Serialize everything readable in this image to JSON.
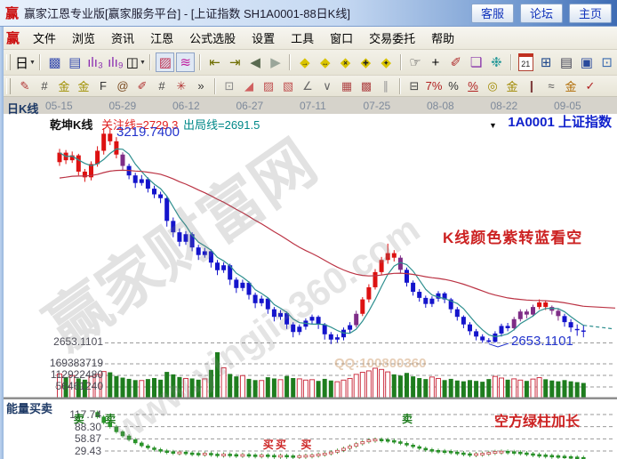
{
  "window": {
    "logo": "赢",
    "title": "赢家江恩专业版[赢家服务平台] - [上证指数  SH1A0001-88日K线]",
    "buttons": [
      {
        "name": "service-button",
        "label": "客服"
      },
      {
        "name": "forum-button",
        "label": "论坛"
      },
      {
        "name": "home-button",
        "label": "主页"
      }
    ]
  },
  "menu": {
    "logo": "赢",
    "items": [
      "文件",
      "浏览",
      "资讯",
      "江恩",
      "公式选股",
      "设置",
      "工具",
      "窗口",
      "交易委托",
      "帮助"
    ]
  },
  "toolbar_main": [
    {
      "n": "period-day-button",
      "g": "日",
      "c": "#000000",
      "dd": true
    },
    {
      "sep": true
    },
    {
      "n": "chart-window-icon",
      "g": "▩",
      "c": "#3a4fb0"
    },
    {
      "n": "info-panel-icon",
      "g": "▤",
      "c": "#3a4fb0"
    },
    {
      "n": "bars-3-icon",
      "g": "ılı₃",
      "c": "#8a2bb0"
    },
    {
      "n": "bars-9-icon",
      "g": "ılı₉",
      "c": "#8a2bb0"
    },
    {
      "n": "candle-style-button",
      "g": "◫",
      "c": "#000000",
      "dd": true
    },
    {
      "sep": true
    },
    {
      "n": "qiankun-kline-icon",
      "g": "▨",
      "c": "#c03050",
      "p": true
    },
    {
      "n": "color-chart-icon",
      "g": "≋",
      "c": "#c020a0",
      "p": true
    },
    {
      "sep": true
    },
    {
      "n": "first-page-icon",
      "g": "⇤",
      "c": "#6e6e00"
    },
    {
      "n": "last-page-icon",
      "g": "⇥",
      "c": "#6e6e00"
    },
    {
      "n": "prev-icon",
      "g": "◀",
      "c": "#5a6a50"
    },
    {
      "n": "next-icon",
      "g": "▶",
      "c": "#9aa69a"
    },
    {
      "sep": true
    },
    {
      "n": "gann-right-icon",
      "g": "◆",
      "c": "#d9c300",
      "ov": "→"
    },
    {
      "n": "gann-horizontal-icon",
      "g": "◆",
      "c": "#d9c300",
      "ov": "↔"
    },
    {
      "n": "gann-cross-icon",
      "g": "◆",
      "c": "#d9c300",
      "ov": "×"
    },
    {
      "n": "gann-plus-icon",
      "g": "◆",
      "c": "#d9c300",
      "ov": "✚"
    },
    {
      "n": "gann-center-icon",
      "g": "◆",
      "c": "#d9c300",
      "ov": "✦"
    },
    {
      "sep": true
    },
    {
      "n": "pan-hand-icon",
      "g": "☞",
      "c": "#444444"
    },
    {
      "n": "crosshair-icon",
      "g": "+",
      "c": "#000000"
    },
    {
      "n": "erase-line-icon",
      "g": "✐",
      "c": "#b03030"
    },
    {
      "n": "mark-note-icon",
      "g": "❏",
      "c": "#8833aa"
    },
    {
      "n": "pattern-icon",
      "g": "❉",
      "c": "#2a9a9a"
    },
    {
      "sep": true
    },
    {
      "n": "calendar-icon",
      "g": "21",
      "c": "#222222",
      "cal": true
    },
    {
      "n": "calculator-icon",
      "g": "⊞",
      "c": "#224a8c"
    },
    {
      "n": "notes-icon",
      "g": "▤",
      "c": "#444455"
    },
    {
      "n": "save-icon",
      "g": "▣",
      "c": "#2a4a9c"
    },
    {
      "n": "windows-icon",
      "g": "⊡",
      "c": "#3a6ab0"
    }
  ],
  "toolbar_draw": [
    {
      "n": "draw-pencil-icon",
      "g": "✎",
      "c": "#b03030"
    },
    {
      "n": "grid-lines-icon",
      "g": "#",
      "c": "#444444"
    },
    {
      "n": "golden-grid-icon",
      "g": "金",
      "c": "#a09000"
    },
    {
      "n": "golden-grid2-icon",
      "g": "金",
      "c": "#a09000"
    },
    {
      "n": "fibonacci-f-icon",
      "g": "F",
      "c": "#333333"
    },
    {
      "n": "spiral-icon",
      "g": "@",
      "c": "#7a4a20"
    },
    {
      "n": "draw-ruler-icon",
      "g": "✐",
      "c": "#b03030"
    },
    {
      "n": "hash-icon",
      "g": "#",
      "c": "#444444"
    },
    {
      "n": "star-burst-icon",
      "g": "✳",
      "c": "#b03030"
    },
    {
      "n": "more-tools-button",
      "g": "»",
      "c": "#333333"
    },
    {
      "sep": true
    },
    {
      "n": "box-tool-icon",
      "g": "⊡",
      "c": "#888888"
    },
    {
      "n": "fan-lines-icon",
      "g": "◢",
      "c": "#d06060"
    },
    {
      "n": "fan-box-icon",
      "g": "▨",
      "c": "#c05050"
    },
    {
      "n": "shade-box-icon",
      "g": "▧",
      "c": "#c05050"
    },
    {
      "n": "angle-lines-icon",
      "g": "∠",
      "c": "#666666"
    },
    {
      "n": "v-lines-icon",
      "g": "∨",
      "c": "#666666"
    },
    {
      "n": "dense-grid-icon",
      "g": "▦",
      "c": "#b04848"
    },
    {
      "n": "dense-grid2-icon",
      "g": "▩",
      "c": "#b04848"
    },
    {
      "n": "slant-lines-icon",
      "g": "∥",
      "c": "#999999"
    },
    {
      "sep": true
    },
    {
      "n": "price-scale-icon",
      "g": "⊟",
      "c": "#444444"
    },
    {
      "n": "percent7-icon",
      "g": "7%",
      "c": "#b02020"
    },
    {
      "n": "percent-icon",
      "g": "%",
      "c": "#333333"
    },
    {
      "n": "percent-lines-icon",
      "g": "%",
      "c": "#b02020",
      "u": true
    },
    {
      "n": "golden-circle-icon",
      "g": "◎",
      "c": "#a08800"
    },
    {
      "n": "golden-levels-icon",
      "g": "金",
      "c": "#a08800"
    },
    {
      "n": "measure-icon",
      "g": "❙",
      "c": "#804040"
    },
    {
      "n": "wave-icon",
      "g": "≈",
      "c": "#555555"
    },
    {
      "n": "golden-band-icon",
      "g": "金",
      "c": "#b06a00"
    },
    {
      "n": "angle-check-icon",
      "g": "✓",
      "c": "#b02020"
    }
  ],
  "chart_header": {
    "tab": "日K线",
    "qiankun_label": "乾坤K线",
    "attention_label": "关注线=2729.3",
    "exit_label": "出局线=2691.5",
    "dropdown": "▼",
    "corner_text": "1A0001  上证指数"
  },
  "watermarks": {
    "brand": "赢家财富网",
    "site": "www.yingjia360.com",
    "qq": "QQ:100800360"
  },
  "colors": {
    "candle_up": "#dd1111",
    "candle_transition": "#7e2d87",
    "candle_down": "#1414cc",
    "ma_fast": "#2e8f8f",
    "ma_slow": "#bb3344",
    "volume_down": "#1e7d1e",
    "volume_up_border": "#cc3344",
    "annotation_red": "#cc2222",
    "label_blue": "#2233cc",
    "sell_green": "#1a7a1a",
    "buy_red": "#cc2222"
  },
  "chart_data": {
    "type": "candlestick",
    "title": "上证指数 SH1A0001-88 日K线",
    "instrument_code": "1A0001",
    "instrument_name": "上证指数",
    "x_dates": [
      "05-15",
      "05-29",
      "06-12",
      "06-27",
      "07-11",
      "07-25",
      "08-08",
      "08-22",
      "09-05"
    ],
    "price_marks": {
      "high": "3219.7400",
      "low": "2653.1101"
    },
    "price_axis_low": "2653.1101",
    "volume_axis_ticks": [
      "169383719",
      "112922480",
      "56461240"
    ],
    "annotations": [
      {
        "text": "K线颜色紫转蓝看空"
      },
      {
        "text": "空方绿柱加长"
      }
    ],
    "candles": [
      [
        3130,
        3165,
        3120,
        3155,
        "r"
      ],
      [
        3155,
        3162,
        3125,
        3135,
        "r"
      ],
      [
        3135,
        3158,
        3128,
        3148,
        "r"
      ],
      [
        3148,
        3152,
        3095,
        3105,
        "r"
      ],
      [
        3105,
        3112,
        3078,
        3090,
        "r"
      ],
      [
        3090,
        3132,
        3082,
        3125,
        "r"
      ],
      [
        3125,
        3172,
        3118,
        3160,
        "r"
      ],
      [
        3160,
        3219.74,
        3150,
        3205,
        "r"
      ],
      [
        3205,
        3218,
        3175,
        3185,
        "r"
      ],
      [
        3185,
        3196,
        3140,
        3150,
        "r"
      ],
      [
        3150,
        3156,
        3108,
        3120,
        "p"
      ],
      [
        3120,
        3126,
        3085,
        3095,
        "b"
      ],
      [
        3095,
        3102,
        3062,
        3075,
        "b"
      ],
      [
        3075,
        3096,
        3068,
        3085,
        "b"
      ],
      [
        3085,
        3090,
        3050,
        3060,
        "b"
      ],
      [
        3060,
        3068,
        3035,
        3045,
        "b"
      ],
      [
        3045,
        3052,
        3022,
        3035,
        "b"
      ],
      [
        3035,
        3040,
        2960,
        2975,
        "b"
      ],
      [
        2975,
        2984,
        2932,
        2945,
        "b"
      ],
      [
        2945,
        2955,
        2908,
        2920,
        "b"
      ],
      [
        2920,
        2948,
        2912,
        2940,
        "b"
      ],
      [
        2940,
        2945,
        2895,
        2905,
        "b"
      ],
      [
        2905,
        2912,
        2872,
        2885,
        "b"
      ],
      [
        2885,
        2904,
        2878,
        2895,
        "b"
      ],
      [
        2895,
        2900,
        2852,
        2865,
        "b"
      ],
      [
        2865,
        2872,
        2832,
        2845,
        "b"
      ],
      [
        2845,
        2866,
        2838,
        2858,
        "b"
      ],
      [
        2858,
        2862,
        2806,
        2820,
        "b"
      ],
      [
        2820,
        2826,
        2785,
        2798,
        "b"
      ],
      [
        2798,
        2820,
        2790,
        2812,
        "b"
      ],
      [
        2812,
        2816,
        2768,
        2780,
        "b"
      ],
      [
        2780,
        2786,
        2745,
        2758,
        "b"
      ],
      [
        2758,
        2778,
        2750,
        2770,
        "b"
      ],
      [
        2770,
        2774,
        2730,
        2742,
        "b"
      ],
      [
        2742,
        2748,
        2710,
        2722,
        "b"
      ],
      [
        2722,
        2740,
        2714,
        2732,
        "b"
      ],
      [
        2732,
        2736,
        2690,
        2702,
        "b"
      ],
      [
        2702,
        2708,
        2668,
        2682,
        "b"
      ],
      [
        2682,
        2702,
        2674,
        2696,
        "b"
      ],
      [
        2696,
        2718,
        2688,
        2712,
        "b"
      ],
      [
        2712,
        2728,
        2702,
        2722,
        "b"
      ],
      [
        2722,
        2726,
        2690,
        2702,
        "b"
      ],
      [
        2702,
        2706,
        2662,
        2676,
        "b"
      ],
      [
        2676,
        2682,
        2650,
        2662,
        "b"
      ],
      [
        2662,
        2676,
        2654,
        2668,
        "b"
      ],
      [
        2668,
        2694,
        2660,
        2688,
        "b"
      ],
      [
        2688,
        2708,
        2680,
        2700,
        "b"
      ],
      [
        2700,
        2738,
        2694,
        2730,
        "p"
      ],
      [
        2730,
        2774,
        2724,
        2768,
        "r"
      ],
      [
        2768,
        2808,
        2760,
        2800,
        "r"
      ],
      [
        2800,
        2848,
        2794,
        2840,
        "r"
      ],
      [
        2840,
        2880,
        2832,
        2872,
        "r"
      ],
      [
        2872,
        2915,
        2862,
        2890,
        "r"
      ],
      [
        2890,
        2898,
        2868,
        2878,
        "r"
      ],
      [
        2878,
        2884,
        2838,
        2846,
        "p"
      ],
      [
        2846,
        2852,
        2802,
        2812,
        "b"
      ],
      [
        2812,
        2818,
        2778,
        2788,
        "b"
      ],
      [
        2788,
        2795,
        2762,
        2772,
        "b"
      ],
      [
        2772,
        2778,
        2746,
        2756,
        "b"
      ],
      [
        2756,
        2776,
        2748,
        2770,
        "b"
      ],
      [
        2770,
        2790,
        2762,
        2784,
        "b"
      ],
      [
        2784,
        2788,
        2758,
        2768,
        "b"
      ],
      [
        2768,
        2772,
        2732,
        2742,
        "b"
      ],
      [
        2742,
        2748,
        2712,
        2722,
        "b"
      ],
      [
        2722,
        2726,
        2692,
        2702,
        "b"
      ],
      [
        2702,
        2708,
        2674,
        2684,
        "b"
      ],
      [
        2684,
        2690,
        2660,
        2670,
        "b"
      ],
      [
        2670,
        2676,
        2653.5,
        2660,
        "b"
      ],
      [
        2660,
        2666,
        2653.11,
        2656,
        "b"
      ],
      [
        2656,
        2684,
        2653.8,
        2678,
        "b"
      ],
      [
        2678,
        2704,
        2670,
        2698,
        "b"
      ],
      [
        2698,
        2706,
        2684,
        2692,
        "b"
      ],
      [
        2692,
        2722,
        2686,
        2716,
        "p"
      ],
      [
        2716,
        2742,
        2710,
        2736,
        "p"
      ],
      [
        2736,
        2742,
        2718,
        2728,
        "p"
      ],
      [
        2728,
        2754,
        2722,
        2748,
        "p"
      ],
      [
        2748,
        2768,
        2742,
        2760,
        "r"
      ],
      [
        2760,
        2766,
        2740,
        2748,
        "r"
      ],
      [
        2748,
        2752,
        2728,
        2738,
        "p"
      ],
      [
        2738,
        2744,
        2712,
        2724,
        "p"
      ],
      [
        2724,
        2730,
        2696,
        2708,
        "b"
      ],
      [
        2708,
        2716,
        2682,
        2694,
        "b"
      ],
      [
        2690,
        2702,
        2672,
        2688,
        "b"
      ],
      [
        2686,
        2700,
        2668,
        2684,
        "b"
      ]
    ],
    "volumes_millions": [
      120,
      105,
      112,
      98,
      92,
      108,
      118,
      132,
      128,
      110,
      102,
      96,
      90,
      88,
      95,
      100,
      92,
      130,
      118,
      105,
      98,
      98,
      92,
      96,
      140,
      226,
      150,
      120,
      108,
      112,
      96,
      90,
      88,
      104,
      98,
      92,
      110,
      100,
      96,
      90,
      92,
      86,
      96,
      88,
      82,
      90,
      98,
      118,
      128,
      135,
      148,
      142,
      130,
      118,
      112,
      125,
      108,
      100,
      95,
      105,
      98,
      90,
      96,
      88,
      84,
      90,
      86,
      82,
      95,
      108,
      100,
      92,
      96,
      90,
      86,
      95,
      102,
      94,
      88,
      84,
      90,
      84,
      80,
      76
    ],
    "indicator": {
      "name": "能量买卖",
      "axis_ticks": [
        "117.74",
        "88.30",
        "58.87",
        "29.43"
      ],
      "values": [
        160,
        152,
        145,
        138,
        130,
        123,
        112,
        98,
        88,
        76,
        66,
        57,
        49,
        42,
        37,
        33,
        30,
        28,
        26,
        27,
        25,
        24,
        23,
        24,
        22,
        21,
        22,
        21,
        20,
        21,
        20,
        19,
        20,
        19,
        18,
        19,
        18,
        17,
        18,
        19,
        20,
        22,
        24,
        27,
        31,
        36,
        41,
        47,
        52,
        56,
        58,
        57,
        55,
        52,
        48,
        44,
        40,
        36,
        33,
        31,
        30,
        29,
        27,
        25,
        23,
        22,
        23,
        24,
        26,
        28,
        29,
        28,
        27,
        25,
        23,
        21,
        20,
        19,
        18,
        17,
        16,
        15,
        14,
        13
      ],
      "sell_signal_indices": [
        3,
        8,
        55
      ],
      "buy_signal_indices": [
        33,
        35,
        39
      ],
      "sell_glyph": "卖",
      "buy_glyph": "买"
    }
  }
}
